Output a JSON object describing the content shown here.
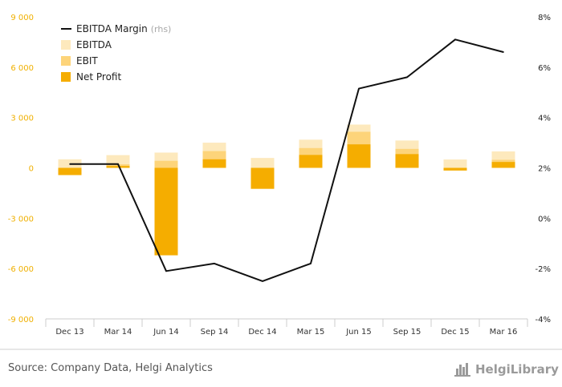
{
  "chart_data": {
    "type": "bar",
    "categories": [
      "Dec 13",
      "Mar 14",
      "Jun 14",
      "Sep 14",
      "Dec 14",
      "Mar 15",
      "Jun 15",
      "Sep 15",
      "Dec 15",
      "Mar 16"
    ],
    "series": [
      {
        "name": "EBITDA",
        "kind": "bar-overlay",
        "axis": "left",
        "color": "#fde9bd",
        "values": [
          510,
          760,
          910,
          1500,
          590,
          1680,
          2580,
          1630,
          500,
          980
        ]
      },
      {
        "name": "EBIT",
        "kind": "bar-overlay",
        "axis": "left",
        "color": "#fdd47a",
        "values": [
          -250,
          210,
          420,
          1000,
          -100,
          1180,
          2150,
          1130,
          -100,
          480
        ]
      },
      {
        "name": "Net Profit",
        "kind": "bar-overlay",
        "axis": "left",
        "color": "#f5ad00",
        "values": [
          -430,
          110,
          -5210,
          510,
          -1250,
          770,
          1400,
          820,
          -160,
          350
        ]
      },
      {
        "name": "EBITDA Margin",
        "name_suffix": "(rhs)",
        "kind": "line",
        "axis": "right",
        "color": "#111111",
        "values": [
          2.15,
          2.15,
          -2.1,
          -1.8,
          -2.5,
          -1.8,
          5.15,
          5.6,
          7.1,
          6.6
        ]
      }
    ],
    "y_left": {
      "min": -9000,
      "max": 9000,
      "ticks": [
        -9000,
        -6000,
        -3000,
        0,
        3000,
        6000,
        9000
      ],
      "tick_labels": [
        "-9 000",
        "-6 000",
        "-3 000",
        "0",
        "3 000",
        "6 000",
        "9 000"
      ]
    },
    "y_right": {
      "min": -4,
      "max": 8,
      "ticks": [
        -4,
        -2,
        0,
        2,
        4,
        6,
        8
      ],
      "tick_labels": [
        "-4%",
        "-2%",
        "0%",
        "2%",
        "4%",
        "6%",
        "8%"
      ]
    },
    "grid": false,
    "legend_position": "top-left",
    "title": "",
    "xlabel": "",
    "ylabel": ""
  },
  "footer": {
    "source": "Source: Company Data, Helgi Analytics",
    "brand": "HelgiLibrary"
  }
}
